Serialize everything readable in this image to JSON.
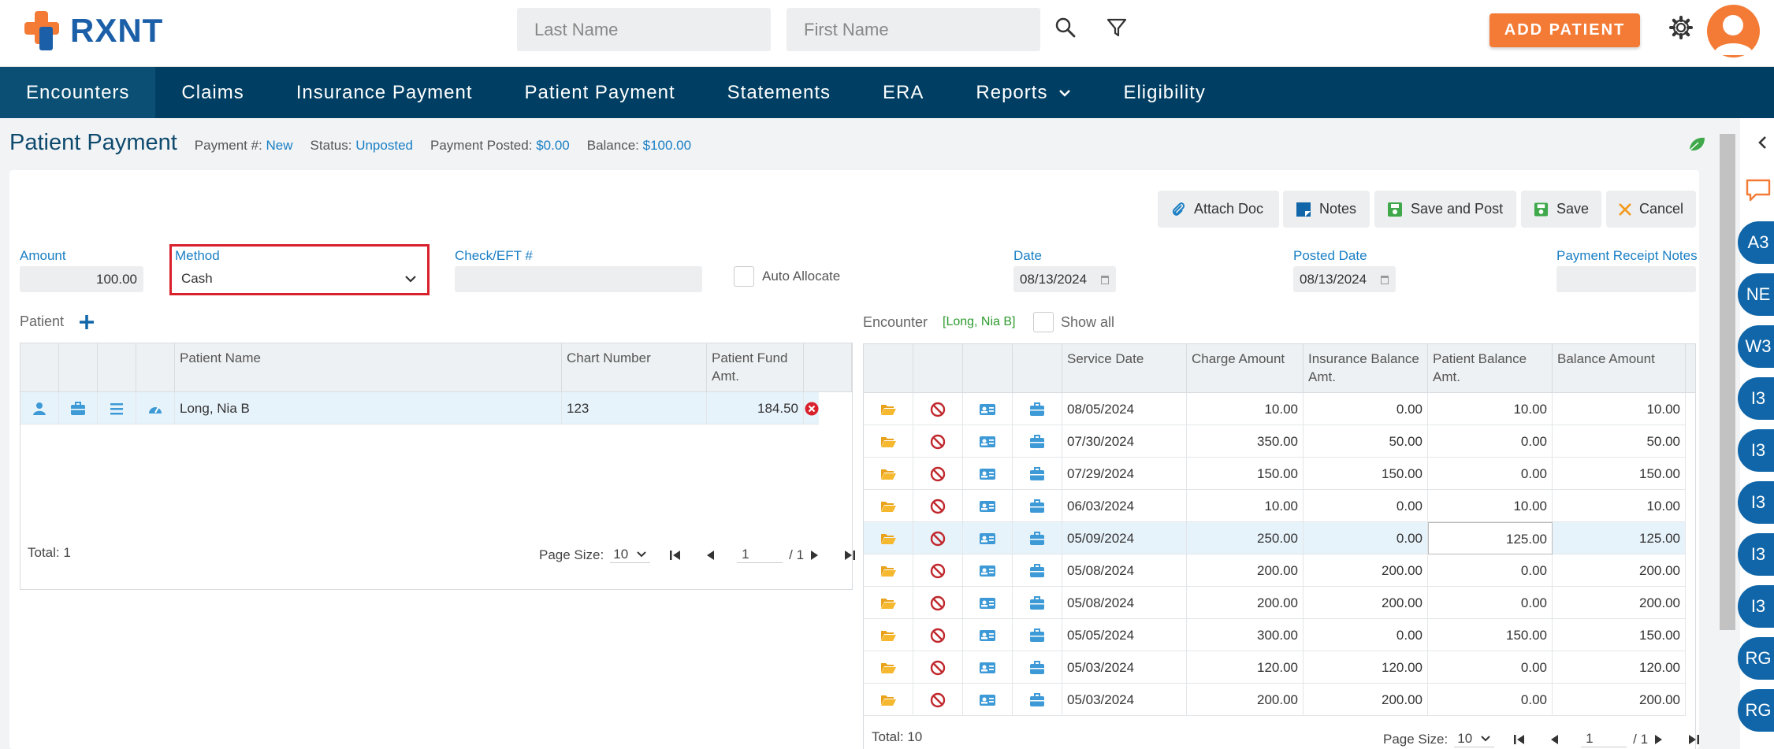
{
  "brand": {
    "name": "RXNT"
  },
  "search": {
    "last_placeholder": "Last Name",
    "first_placeholder": "First Name"
  },
  "header": {
    "add_patient": "ADD PATIENT"
  },
  "nav": [
    "Encounters",
    "Claims",
    "Insurance Payment",
    "Patient Payment",
    "Statements",
    "ERA",
    "Reports",
    "Eligibility"
  ],
  "page": {
    "title": "Patient Payment",
    "payment_no_label": "Payment #:",
    "payment_no": "New",
    "status_label": "Status:",
    "status": "Unposted",
    "posted_label": "Payment Posted:",
    "posted": "$0.00",
    "balance_label": "Balance:",
    "balance": "$100.00"
  },
  "toolbar": {
    "attach": "Attach Doc",
    "notes": "Notes",
    "save_post": "Save and Post",
    "save": "Save",
    "cancel": "Cancel"
  },
  "form": {
    "amount_label": "Amount",
    "amount": "100.00",
    "method_label": "Method",
    "method": "Cash",
    "check_label": "Check/EFT #",
    "check": "",
    "auto_allocate": "Auto Allocate",
    "date_label": "Date",
    "date": "08/13/2024",
    "posted_date_label": "Posted Date",
    "posted_date": "08/13/2024",
    "receipt_label": "Payment Receipt Notes",
    "receipt": ""
  },
  "patient_grid": {
    "section": "Patient",
    "headers": [
      "Patient Name",
      "Chart Number",
      "Patient Fund Amt."
    ],
    "rows": [
      {
        "name": "Long, Nia B",
        "chart": "123",
        "fund": "184.50"
      }
    ],
    "total": "Total: 1",
    "page_size_label": "Page Size:",
    "page_size": "10",
    "page": "1",
    "of": "/ 1"
  },
  "encounter_grid": {
    "section": "Encounter",
    "patient_tag": "[Long, Nia B]",
    "show_all": "Show all",
    "headers": [
      "Service Date",
      "Charge Amount",
      "Insurance Balance Amt.",
      "Patient Balance Amt.",
      "Balance Amount"
    ],
    "rows": [
      {
        "date": "08/05/2024",
        "charge": "10.00",
        "ins": "0.00",
        "pat": "10.00",
        "bal": "10.00"
      },
      {
        "date": "07/30/2024",
        "charge": "350.00",
        "ins": "50.00",
        "pat": "0.00",
        "bal": "50.00"
      },
      {
        "date": "07/29/2024",
        "charge": "150.00",
        "ins": "150.00",
        "pat": "0.00",
        "bal": "150.00"
      },
      {
        "date": "06/03/2024",
        "charge": "10.00",
        "ins": "0.00",
        "pat": "10.00",
        "bal": "10.00"
      },
      {
        "date": "05/09/2024",
        "charge": "250.00",
        "ins": "0.00",
        "pat": "125.00",
        "bal": "125.00"
      },
      {
        "date": "05/08/2024",
        "charge": "200.00",
        "ins": "200.00",
        "pat": "0.00",
        "bal": "200.00"
      },
      {
        "date": "05/08/2024",
        "charge": "200.00",
        "ins": "200.00",
        "pat": "0.00",
        "bal": "200.00"
      },
      {
        "date": "05/05/2024",
        "charge": "300.00",
        "ins": "0.00",
        "pat": "150.00",
        "bal": "150.00"
      },
      {
        "date": "05/03/2024",
        "charge": "120.00",
        "ins": "120.00",
        "pat": "0.00",
        "bal": "120.00"
      },
      {
        "date": "05/03/2024",
        "charge": "200.00",
        "ins": "200.00",
        "pat": "0.00",
        "bal": "200.00"
      }
    ],
    "selected_row": 4,
    "total": "Total: 10",
    "page_size_label": "Page Size:",
    "page_size": "10",
    "page": "1",
    "of": "/ 1"
  },
  "right_rail": {
    "badges": [
      "A3",
      "NE",
      "W3",
      "I3",
      "I3",
      "I3",
      "I3",
      "I3",
      "RG",
      "RG"
    ]
  },
  "colors": {
    "brand_blue": "#1b5fa8",
    "nav": "#003f63",
    "accent": "#f47b36",
    "link": "#1a7fc4",
    "method_highlight": "#d9212c"
  }
}
